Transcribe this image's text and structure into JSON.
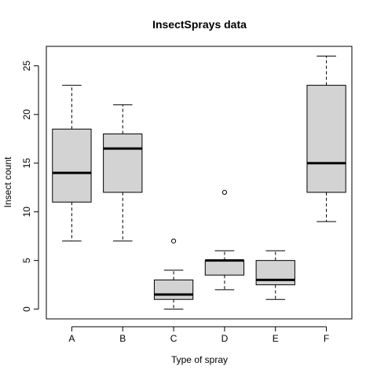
{
  "chart_data": {
    "type": "boxplot",
    "title": "InsectSprays data",
    "xlabel": "Type of spray",
    "ylabel": "Insect count",
    "ylim": [
      -1,
      27
    ],
    "yticks": [
      0,
      5,
      10,
      15,
      20,
      25
    ],
    "categories": [
      "A",
      "B",
      "C",
      "D",
      "E",
      "F"
    ],
    "boxes": [
      {
        "category": "A",
        "whisker_low": 7,
        "q1": 11,
        "median": 14,
        "q3": 18.5,
        "whisker_high": 23,
        "outliers": []
      },
      {
        "category": "B",
        "whisker_low": 7,
        "q1": 12,
        "median": 16.5,
        "q3": 18,
        "whisker_high": 21,
        "outliers": []
      },
      {
        "category": "C",
        "whisker_low": 0,
        "q1": 1,
        "median": 1.5,
        "q3": 3,
        "whisker_high": 4,
        "outliers": [
          7
        ]
      },
      {
        "category": "D",
        "whisker_low": 2,
        "q1": 3.5,
        "median": 5,
        "q3": 5,
        "whisker_high": 6,
        "outliers": [
          12
        ]
      },
      {
        "category": "E",
        "whisker_low": 1,
        "q1": 2.5,
        "median": 3,
        "q3": 5,
        "whisker_high": 6,
        "outliers": []
      },
      {
        "category": "F",
        "whisker_low": 9,
        "q1": 12,
        "median": 15,
        "q3": 23,
        "whisker_high": 26,
        "outliers": []
      }
    ],
    "box_fill": "#d3d3d3",
    "grid": false,
    "legend": "none"
  }
}
